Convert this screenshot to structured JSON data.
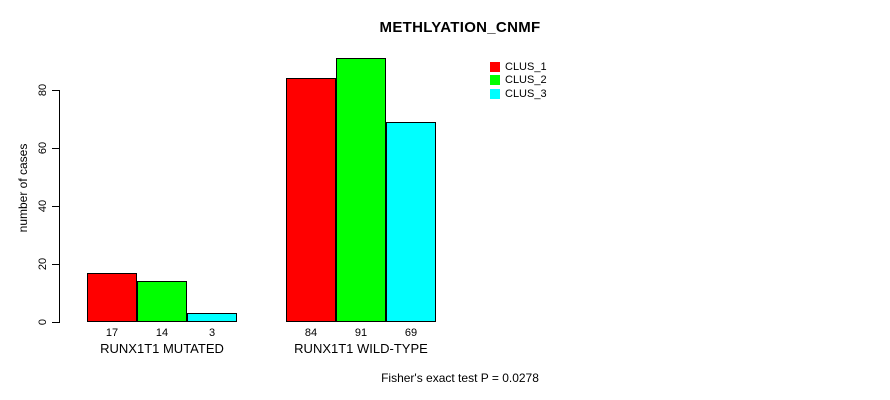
{
  "chart_data": {
    "type": "bar",
    "title": "METHLYATION_CNMF",
    "xlabel": "",
    "ylabel": "number of cases",
    "categories": [
      "RUNX1T1 MUTATED",
      "RUNX1T1 WILD-TYPE"
    ],
    "series": [
      {
        "name": "CLUS_1",
        "color": "#ff0000",
        "values": [
          17,
          84
        ]
      },
      {
        "name": "CLUS_2",
        "color": "#00ff00",
        "values": [
          14,
          91
        ]
      },
      {
        "name": "CLUS_3",
        "color": "#00ffff",
        "values": [
          3,
          69
        ]
      }
    ],
    "ylim": [
      0,
      80
    ],
    "yticks": [
      0,
      20,
      40,
      60,
      80
    ],
    "bar_value_labels_shown": true,
    "grid": false,
    "legend_position": "top-right",
    "annotation": "Fisher's exact test P = 0.0278"
  }
}
